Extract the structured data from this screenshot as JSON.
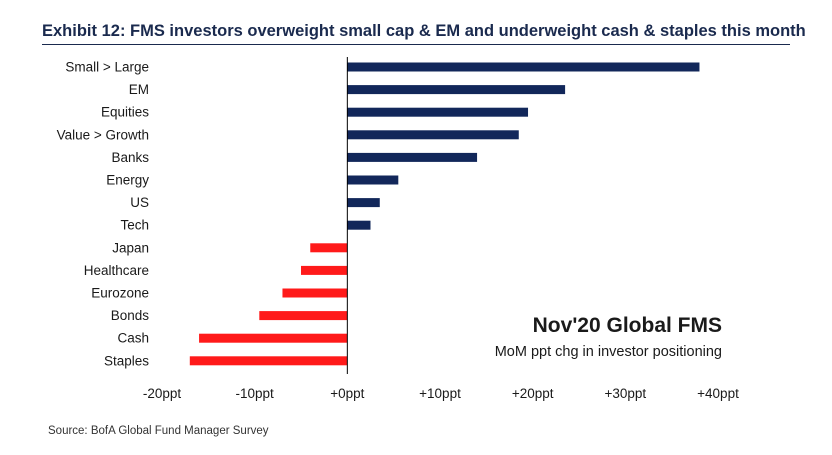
{
  "header": {
    "title": "Exhibit 12: FMS investors overweight small cap & EM and underweight cash & staples this month"
  },
  "footer": {
    "source": "Source: BofA Global Fund Manager Survey"
  },
  "colors": {
    "positive": "#12275a",
    "negative": "#ff1a1a",
    "title": "#1a2a4e"
  },
  "chart_data": {
    "type": "bar",
    "orientation": "horizontal",
    "title": "Nov'20 Global FMS",
    "subtitle": "MoM ppt chg in investor positioning",
    "xlabel": "",
    "ylabel": "",
    "xlim": [
      -20,
      40
    ],
    "x_ticks": [
      -20,
      -10,
      0,
      10,
      20,
      30,
      40
    ],
    "x_tick_labels": [
      "-20ppt",
      "-10ppt",
      "+0ppt",
      "+10ppt",
      "+20ppt",
      "+30ppt",
      "+40ppt"
    ],
    "categories": [
      "Small > Large",
      "EM",
      "Equities",
      "Value > Growth",
      "Banks",
      "Energy",
      "US",
      "Tech",
      "Japan",
      "Healthcare",
      "Eurozone",
      "Bonds",
      "Cash",
      "Staples"
    ],
    "values": [
      38,
      23.5,
      19.5,
      18.5,
      14,
      5.5,
      3.5,
      2.5,
      -4,
      -5,
      -7,
      -9.5,
      -16,
      -17
    ],
    "grid": false,
    "legend": "none"
  }
}
